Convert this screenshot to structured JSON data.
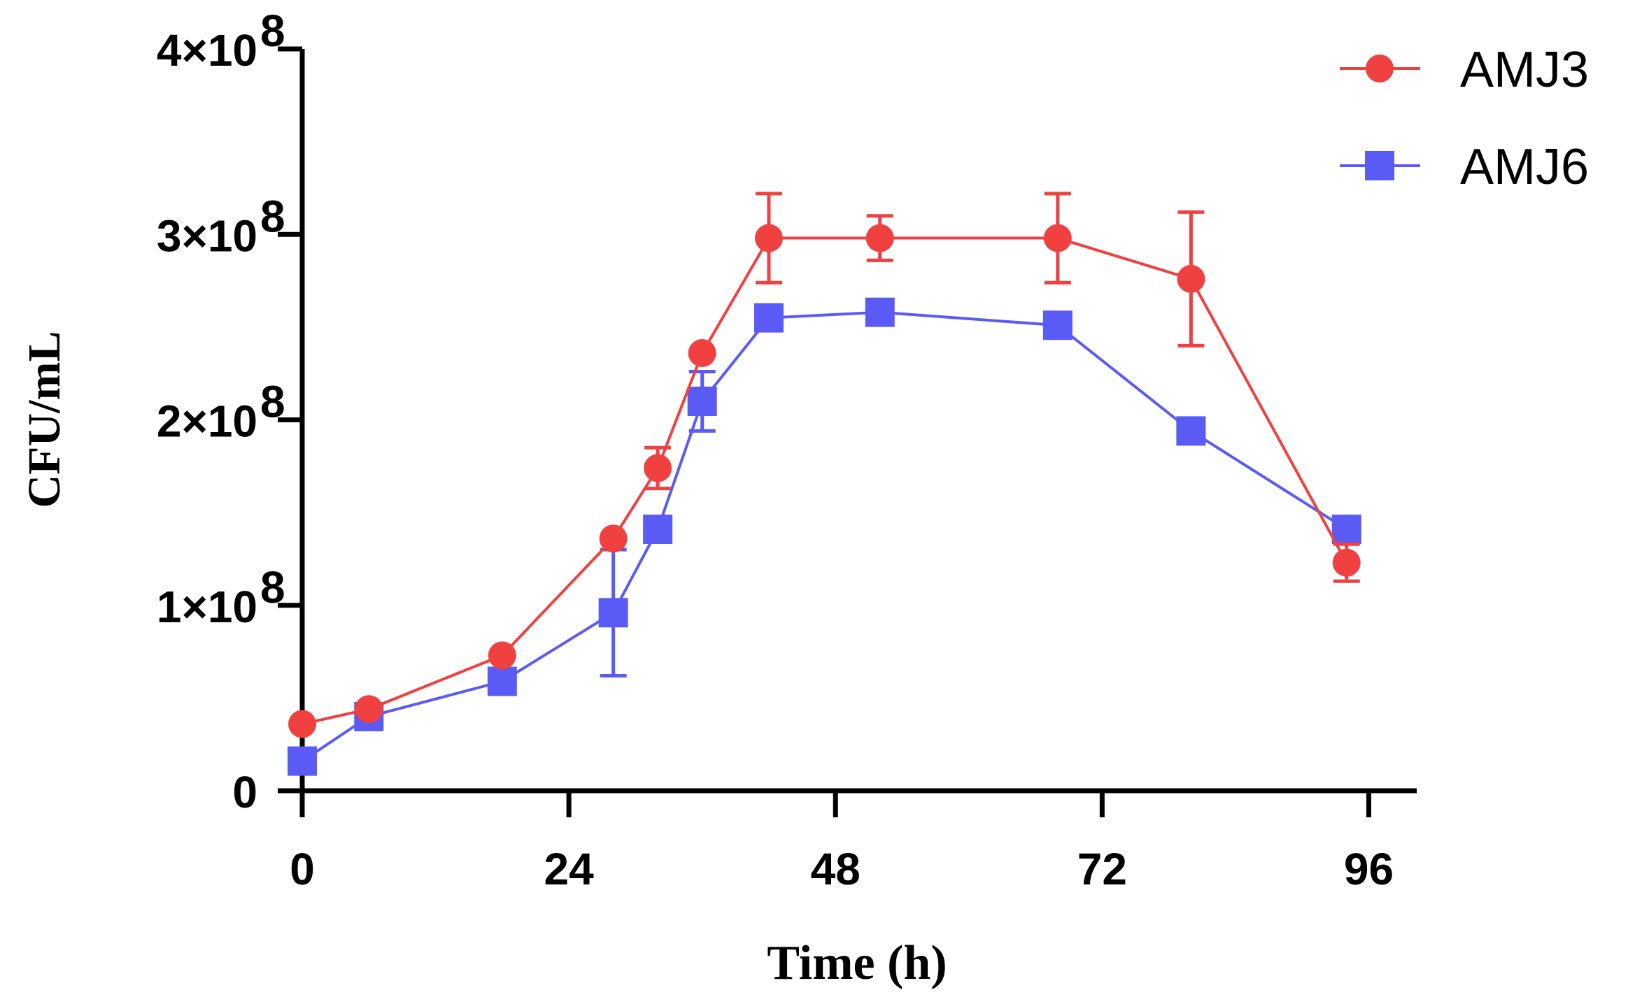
{
  "colors": {
    "AMJ3": "#f04040",
    "AMJ6": "#5a5af5",
    "axis": "#000000"
  },
  "chart_data": {
    "type": "line",
    "title": "",
    "xlabel": "Time (h)",
    "ylabel": "CFU/mL",
    "xlim": [
      0,
      100
    ],
    "ylim": [
      0,
      400000000
    ],
    "xticks": [
      0,
      24,
      48,
      72,
      96
    ],
    "xtick_labels": [
      "0",
      "24",
      "48",
      "72",
      "96"
    ],
    "yticks": [
      0,
      100000000,
      200000000,
      300000000,
      400000000
    ],
    "ytick_labels": [
      {
        "mant": "0",
        "exp": ""
      },
      {
        "mant": "1×10",
        "exp": "8"
      },
      {
        "mant": "2×10",
        "exp": "8"
      },
      {
        "mant": "3×10",
        "exp": "8"
      },
      {
        "mant": "4×10",
        "exp": "8"
      }
    ],
    "legend_position": "top-right",
    "series": [
      {
        "name": "AMJ3",
        "marker": "circle",
        "color": "#f04040",
        "x": [
          0,
          6,
          18,
          28,
          32,
          36,
          42,
          52,
          68,
          80,
          94
        ],
        "y": [
          36000000,
          44000000,
          73000000,
          136000000,
          174000000,
          236000000,
          298000000,
          298000000,
          298000000,
          276000000,
          123000000
        ],
        "err": [
          0,
          0,
          0,
          0,
          11000000,
          0,
          24000000,
          12000000,
          24000000,
          36000000,
          10000000
        ]
      },
      {
        "name": "AMJ6",
        "marker": "square",
        "color": "#5a5af5",
        "x": [
          0,
          6,
          18,
          28,
          32,
          36,
          42,
          52,
          68,
          80,
          94
        ],
        "y": [
          16000000,
          40000000,
          59000000,
          96000000,
          141000000,
          210000000,
          255000000,
          258000000,
          251000000,
          194000000,
          141000000
        ],
        "err": [
          0,
          0,
          0,
          34000000,
          0,
          16000000,
          0,
          0,
          0,
          0,
          0
        ]
      }
    ]
  }
}
